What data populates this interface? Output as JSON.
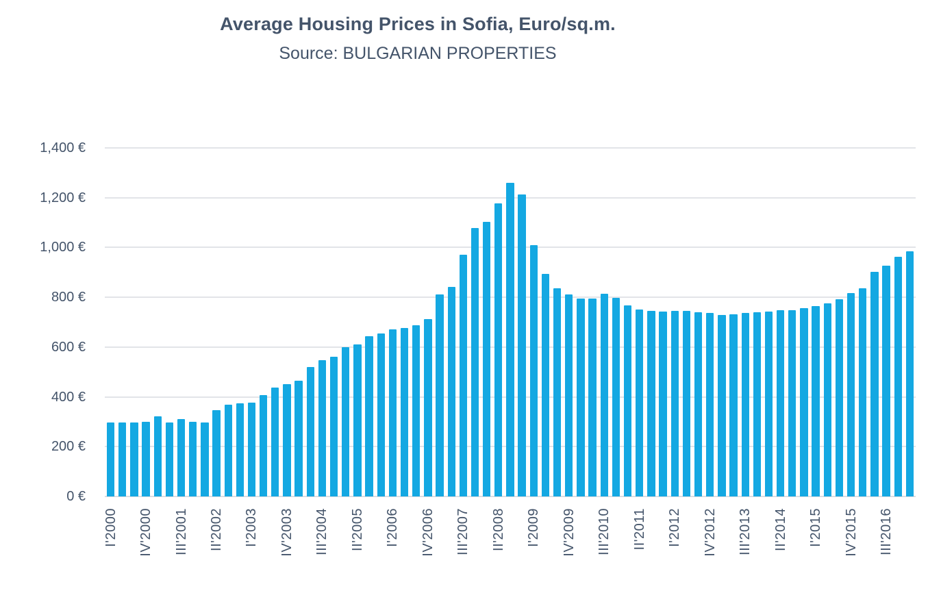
{
  "chart_data": {
    "type": "bar",
    "title": "Average Housing Prices in Sofia, Euro/sq.m.",
    "subtitle": "Source: BULGARIAN PROPERTIES",
    "categories": [
      "I'2000",
      "II'2000",
      "III'2000",
      "IV'2000",
      "I'2001",
      "II'2001",
      "III'2001",
      "IV'2001",
      "I'2002",
      "II'2002",
      "III'2002",
      "IV'2002",
      "I'2003",
      "II'2003",
      "III'2003",
      "IV'2003",
      "I'2004",
      "II'2004",
      "III'2004",
      "IV'2004",
      "I'2005",
      "II'2005",
      "III'2005",
      "IV'2005",
      "I'2006",
      "II'2006",
      "III'2006",
      "IV'2006",
      "I'2007",
      "II'2007",
      "III'2007",
      "IV'2007",
      "I'2008",
      "II'2008",
      "III'2008",
      "IV'2008",
      "I'2009",
      "II'2009",
      "III'2009",
      "IV'2009",
      "I'2010",
      "II'2010",
      "III'2010",
      "IV'2010",
      "I'2011",
      "II'2011",
      "III'2011",
      "IV'2011",
      "I'2012",
      "II'2012",
      "III'2012",
      "IV'2012",
      "I'2013",
      "II'2013",
      "III'2013",
      "IV'2013",
      "I'2014",
      "II'2014",
      "III'2014",
      "IV'2014",
      "I'2015",
      "II'2015",
      "III'2015",
      "IV'2015",
      "I'2016",
      "II'2016",
      "III'2016",
      "IV'2016",
      "I'2017"
    ],
    "values": [
      297,
      296,
      296,
      300,
      323,
      298,
      311,
      299,
      298,
      346,
      368,
      374,
      376,
      408,
      438,
      450,
      466,
      521,
      548,
      562,
      600,
      611,
      644,
      656,
      672,
      676,
      687,
      713,
      812,
      843,
      971,
      1078,
      1102,
      1178,
      1261,
      1212,
      1010,
      893,
      837,
      811,
      795,
      796,
      814,
      798,
      767,
      750,
      746,
      743,
      746,
      745,
      739,
      737,
      729,
      731,
      737,
      740,
      744,
      747,
      749,
      757,
      765,
      777,
      791,
      816,
      836,
      901,
      928,
      962,
      984
    ],
    "ylim": [
      0,
      1400
    ],
    "ytick_interval": 200,
    "ytick_labels": [
      "0 €",
      "200 €",
      "400 €",
      "600 €",
      "800 €",
      "1,000 €",
      "1,200 €",
      "1,400 €"
    ],
    "x_label_every": 3,
    "x_labels_visible": [
      "I'2000",
      "IV'2000",
      "III'2001",
      "II'2002",
      "I'2003",
      "IV'2003",
      "III'2004",
      "II'2005",
      "I'2006",
      "IV'2006",
      "III'2007",
      "II'2008",
      "I'2009",
      "IV'2009",
      "III'2010",
      "II'2011",
      "I'2012",
      "IV'2012",
      "III'2013",
      "II'2014",
      "I'2015",
      "IV'2015",
      "III'2016"
    ],
    "grid": true,
    "legend": "none",
    "bar_gap_ratio": 0.34,
    "colors": {
      "bar": "#14A8E2",
      "text": "#44546A",
      "gridline": "#E2E4E8",
      "background": "#FFFFFF"
    }
  }
}
